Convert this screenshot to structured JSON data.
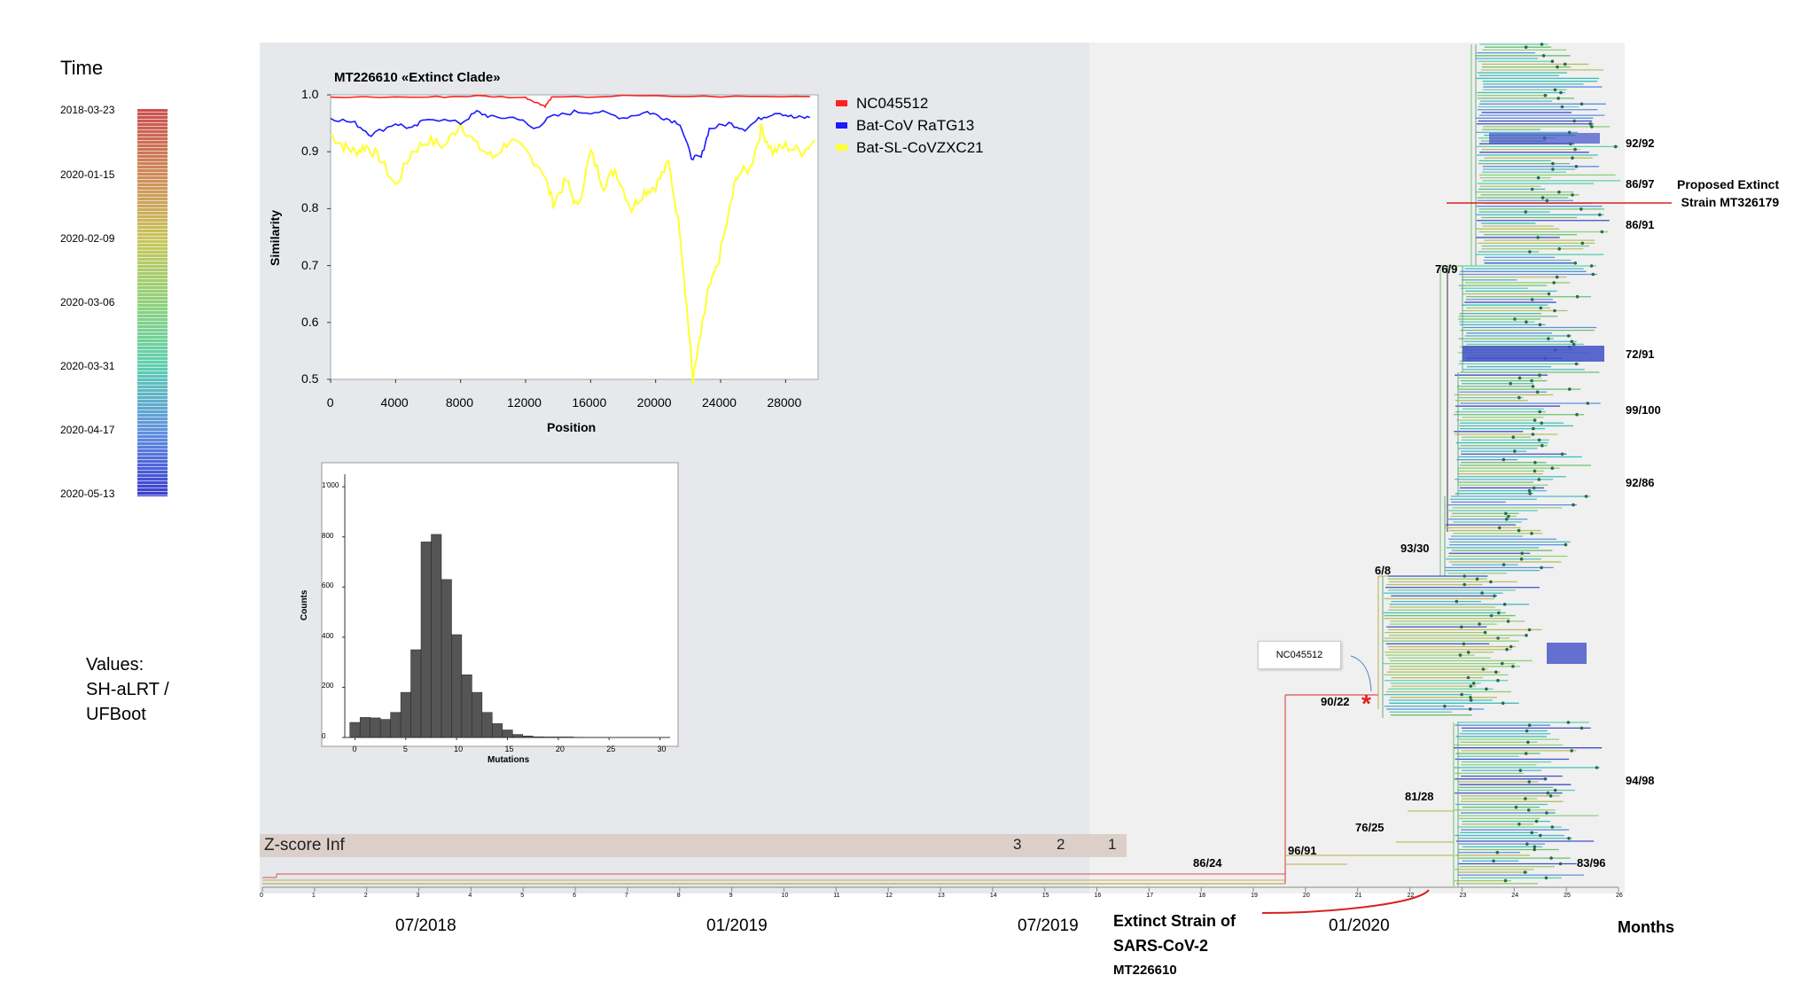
{
  "legend": {
    "title": "Time",
    "dates": [
      "2018-03-23",
      "2020-01-15",
      "2020-02-09",
      "2020-03-06",
      "2020-03-31",
      "2020-04-17",
      "2020-05-13"
    ],
    "values_label_lines": [
      "Values:",
      "SH-aLRT /",
      "UFBoot"
    ]
  },
  "similarity_plot": {
    "title": "MT226610 «Extinct Clade»",
    "xlabel": "Position",
    "ylabel": "Similarity",
    "x_ticks": [
      "0",
      "4000",
      "8000",
      "12000",
      "16000",
      "20000",
      "24000",
      "28000"
    ],
    "y_ticks": [
      "0.5",
      "0.6",
      "0.7",
      "0.8",
      "0.9",
      "1.0"
    ],
    "legend": [
      {
        "name": "NC045512",
        "color": "#ff2020"
      },
      {
        "name": "Bat-CoV RaTG13",
        "color": "#1a1aff"
      },
      {
        "name": "Bat-SL-CoVZXC21",
        "color": "#ffff30"
      }
    ]
  },
  "histogram": {
    "xlabel": "Mutations",
    "ylabel": "Counts",
    "x_ticks": [
      "0",
      "5",
      "10",
      "15",
      "20",
      "25",
      "30"
    ],
    "y_ticks": [
      "0",
      "200",
      "400",
      "600",
      "800",
      "1'000"
    ]
  },
  "zscore": {
    "label": "Z-score Inf",
    "values": [
      "3",
      "2",
      "1"
    ]
  },
  "x_axis": {
    "dates": [
      "07/2018",
      "01/2019",
      "07/2019",
      "01/2020"
    ],
    "unit": "Months",
    "ticks": [
      "0",
      "1",
      "2",
      "3",
      "4",
      "5",
      "6",
      "7",
      "8",
      "9",
      "10",
      "11",
      "12",
      "13",
      "14",
      "15",
      "16",
      "17",
      "18",
      "19",
      "20",
      "21",
      "22",
      "23",
      "24",
      "25",
      "26"
    ]
  },
  "support_values": {
    "v1": "92/92",
    "v2": "86/97",
    "v3": "86/91",
    "v4": "76/9",
    "v5": "72/91",
    "v6": "99/100",
    "v7": "92/86",
    "v8": "93/30",
    "v9": "6/8",
    "v10": "90/22",
    "v11": "94/98",
    "v12": "81/28",
    "v13": "76/25",
    "v14": "96/91",
    "v15": "86/24",
    "v16": "83/96"
  },
  "annotations": {
    "proposed_line1": "Proposed Extinct",
    "proposed_line2": "Strain MT326179",
    "callout": "NC045512",
    "asterisk": "*",
    "extinct_line1": "Extinct Strain of",
    "extinct_line2": "SARS-CoV-2",
    "extinct_line3": "MT226610"
  },
  "colors": {
    "tree_red": "#d9534f",
    "tree_olive": "#b8b040",
    "tree_green": "#6cc070",
    "tree_teal": "#3fc0b8",
    "tree_blue": "#4050c8"
  }
}
